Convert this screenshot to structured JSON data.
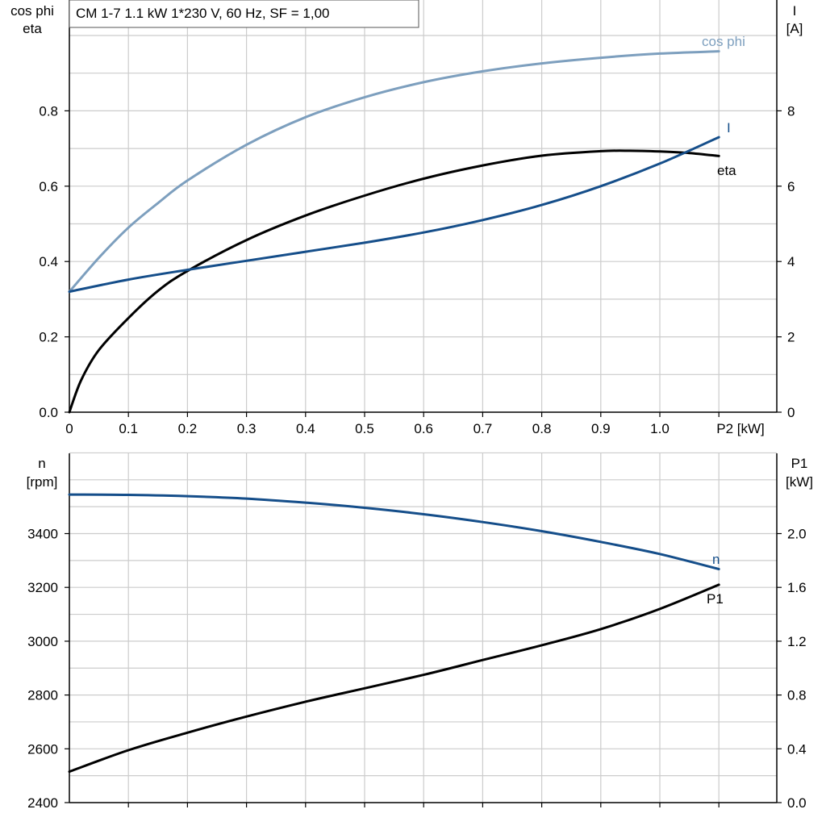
{
  "title_box": "CM 1-7   1.1 kW   1*230 V, 60 Hz, SF = 1,00",
  "colors": {
    "black": "#000000",
    "blue": "#154e8a",
    "lightblue": "#7d9fbe",
    "grid": "#cccccc"
  },
  "chart_data": [
    {
      "type": "line",
      "xlabel": "P2 [kW]",
      "x_ticks": [
        "0",
        "0.1",
        "0.2",
        "0.3",
        "0.4",
        "0.5",
        "0.6",
        "0.7",
        "0.8",
        "0.9",
        "1.0"
      ],
      "xlim": [
        0,
        1.2
      ],
      "ylabel_left": [
        "cos phi",
        "eta"
      ],
      "ylim_left": [
        0,
        1.0
      ],
      "yticks_left": [
        "0.0",
        "0.2",
        "0.4",
        "0.6",
        "0.8"
      ],
      "ylabel_right": [
        "I",
        "[A]"
      ],
      "ylim_right": [
        0,
        10
      ],
      "yticks_right": [
        "0",
        "2",
        "4",
        "6",
        "8"
      ],
      "grid": true,
      "series": [
        {
          "name": "cos phi",
          "color": "#7d9fbe",
          "axis": "left",
          "x": [
            0,
            0.05,
            0.1,
            0.15,
            0.2,
            0.3,
            0.4,
            0.5,
            0.6,
            0.7,
            0.8,
            0.9,
            1.0,
            1.1
          ],
          "y": [
            0.32,
            0.41,
            0.49,
            0.555,
            0.615,
            0.71,
            0.783,
            0.836,
            0.876,
            0.905,
            0.926,
            0.941,
            0.952,
            0.958
          ]
        },
        {
          "name": "eta",
          "color": "#000000",
          "axis": "left",
          "x": [
            0,
            0.02,
            0.05,
            0.1,
            0.15,
            0.2,
            0.3,
            0.4,
            0.5,
            0.6,
            0.7,
            0.8,
            0.9,
            0.95,
            1.0,
            1.05,
            1.1
          ],
          "y": [
            0.0,
            0.085,
            0.165,
            0.25,
            0.322,
            0.375,
            0.457,
            0.522,
            0.575,
            0.62,
            0.655,
            0.681,
            0.693,
            0.694,
            0.692,
            0.688,
            0.68
          ]
        },
        {
          "name": "I",
          "color": "#154e8a",
          "axis": "right",
          "x": [
            0,
            0.1,
            0.2,
            0.3,
            0.4,
            0.5,
            0.6,
            0.7,
            0.8,
            0.9,
            1.0,
            1.1
          ],
          "y": [
            3.2,
            3.52,
            3.78,
            4.02,
            4.26,
            4.5,
            4.77,
            5.1,
            5.5,
            6.0,
            6.6,
            7.3
          ]
        }
      ]
    },
    {
      "type": "line",
      "xlim": [
        0,
        1.2
      ],
      "ylabel_left": [
        "n",
        "[rpm]"
      ],
      "ylim_left": [
        2400,
        3700
      ],
      "yticks_left": [
        "2400",
        "2600",
        "2800",
        "3000",
        "3200",
        "3400"
      ],
      "ylabel_right": [
        "P1",
        "[kW]"
      ],
      "ylim_right": [
        0,
        2.6
      ],
      "yticks_right": [
        "0.0",
        "0.4",
        "0.8",
        "1.2",
        "1.6",
        "2.0"
      ],
      "grid": true,
      "series": [
        {
          "name": "n",
          "color": "#154e8a",
          "axis": "left",
          "x": [
            0,
            0.1,
            0.2,
            0.3,
            0.4,
            0.5,
            0.6,
            0.7,
            0.8,
            0.9,
            1.0,
            1.1
          ],
          "y": [
            3545,
            3544,
            3539,
            3530,
            3515,
            3496,
            3472,
            3443,
            3409,
            3369,
            3324,
            3268
          ]
        },
        {
          "name": "P1",
          "color": "#000000",
          "axis": "right",
          "x": [
            0,
            0.1,
            0.2,
            0.3,
            0.4,
            0.5,
            0.6,
            0.7,
            0.8,
            0.9,
            1.0,
            1.1
          ],
          "y": [
            0.23,
            0.39,
            0.52,
            0.64,
            0.75,
            0.85,
            0.95,
            1.06,
            1.17,
            1.29,
            1.44,
            1.62
          ]
        }
      ]
    }
  ]
}
